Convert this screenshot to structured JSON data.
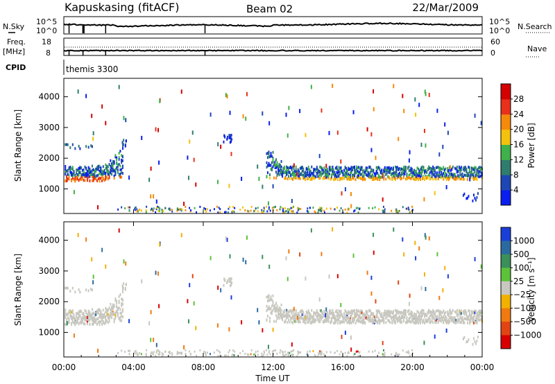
{
  "header": {
    "station": "Kapuskasing (fitACF)",
    "beam": "Beam 02",
    "date": "22/Mar/2009"
  },
  "top_panels": {
    "noise": {
      "left_label": "N.Sky",
      "right_label": "N.Search",
      "ytick_top": "10^5",
      "ytick_bottom": "10^0"
    },
    "freq": {
      "left_label_1": "Freq.",
      "left_label_2": "[MHz]",
      "right_label": "Nave",
      "ytick_top": "18",
      "ytick_bottom": "8",
      "right_tick_top": "60",
      "right_tick_bottom": "0"
    },
    "cpid": {
      "label": "CPID",
      "mode": "themis 3300"
    }
  },
  "chart_data": [
    {
      "type": "heatmap",
      "name": "power-panel",
      "ylabel": "Slant Range [km]",
      "yticks": [
        1000,
        2000,
        3000,
        4000
      ],
      "ylim": [
        200,
        4600
      ],
      "xlim": [
        0,
        24
      ],
      "colorbar": {
        "label": "Power [dB]",
        "ticks": [
          "4",
          "8",
          "12",
          "16",
          "20",
          "24",
          "28"
        ],
        "colors": [
          "#0a1ef0",
          "#1e46b4",
          "#2f7d6e",
          "#40b14a",
          "#f4c20d",
          "#f58a0a",
          "#e8301b",
          "#d40000"
        ]
      }
    },
    {
      "type": "heatmap",
      "name": "velocity-panel",
      "ylabel": "Slant Range [km]",
      "yticks": [
        1000,
        2000,
        3000,
        4000
      ],
      "ylim": [
        200,
        4600
      ],
      "xlim": [
        0,
        24
      ],
      "xlabel": "Time UT",
      "xticks": [
        "00:00",
        "04:00",
        "08:00",
        "12:00",
        "16:00",
        "20:00",
        "00:00"
      ],
      "colorbar": {
        "label": "Velocity [m s⁻¹]",
        "ticks": [
          "1000",
          "500",
          "100",
          "25",
          "−25",
          "−100",
          "−500",
          "−1000"
        ],
        "colors": [
          "#1a3ed8",
          "#2b6aa0",
          "#3a8f5a",
          "#5cc23a",
          "#c8c8c0",
          "#f2b000",
          "#f07a10",
          "#e24414",
          "#d90000"
        ]
      }
    }
  ]
}
